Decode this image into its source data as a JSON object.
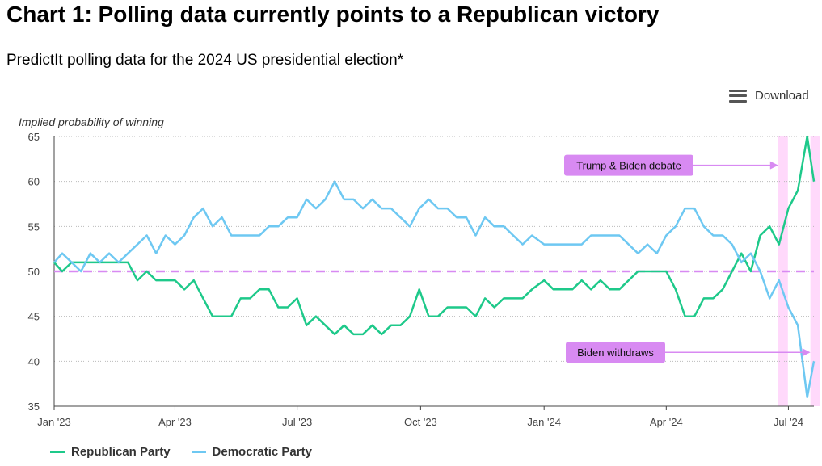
{
  "header": {
    "title": "Chart 1: Polling data currently points to a Republican victory",
    "subtitle": "PredictIt polling data for the 2024 US presidential election*",
    "download_label": "Download",
    "menu_icon": "hamburger-menu-icon"
  },
  "chart_data": {
    "type": "line",
    "ylabel": "Implied probability of winning",
    "xlabel": "",
    "ylim": [
      35,
      65
    ],
    "yticks": [
      35,
      40,
      45,
      50,
      55,
      60,
      65
    ],
    "xlim": [
      "2023-01-01",
      "2024-07-20"
    ],
    "xticks": [
      {
        "label": "Jan '23",
        "date": "2023-01-01"
      },
      {
        "label": "Apr '23",
        "date": "2023-04-01"
      },
      {
        "label": "Jul '23",
        "date": "2023-07-01"
      },
      {
        "label": "Oct '23",
        "date": "2023-10-01"
      },
      {
        "label": "Jan '24",
        "date": "2024-01-01"
      },
      {
        "label": "Apr '24",
        "date": "2024-04-01"
      },
      {
        "label": "Jul '24",
        "date": "2024-07-01"
      }
    ],
    "grid": true,
    "legend_position": "bottom-left",
    "reference_line": {
      "value": 50,
      "color": "#d88af2"
    },
    "series": [
      {
        "name": "Republican Party",
        "color": "#1ec98a",
        "values": [
          [
            "2023-01-01",
            51
          ],
          [
            "2023-01-07",
            50
          ],
          [
            "2023-01-14",
            51
          ],
          [
            "2023-01-21",
            51
          ],
          [
            "2023-01-28",
            51
          ],
          [
            "2023-02-04",
            51
          ],
          [
            "2023-02-11",
            51
          ],
          [
            "2023-02-18",
            51
          ],
          [
            "2023-02-25",
            51
          ],
          [
            "2023-03-04",
            49
          ],
          [
            "2023-03-11",
            50
          ],
          [
            "2023-03-18",
            49
          ],
          [
            "2023-03-25",
            49
          ],
          [
            "2023-04-01",
            49
          ],
          [
            "2023-04-08",
            48
          ],
          [
            "2023-04-15",
            49
          ],
          [
            "2023-04-22",
            47
          ],
          [
            "2023-04-29",
            45
          ],
          [
            "2023-05-06",
            45
          ],
          [
            "2023-05-13",
            45
          ],
          [
            "2023-05-20",
            47
          ],
          [
            "2023-05-27",
            47
          ],
          [
            "2023-06-03",
            48
          ],
          [
            "2023-06-10",
            48
          ],
          [
            "2023-06-17",
            46
          ],
          [
            "2023-06-24",
            46
          ],
          [
            "2023-07-01",
            47
          ],
          [
            "2023-07-08",
            44
          ],
          [
            "2023-07-15",
            45
          ],
          [
            "2023-07-22",
            44
          ],
          [
            "2023-07-29",
            43
          ],
          [
            "2023-08-05",
            44
          ],
          [
            "2023-08-12",
            43
          ],
          [
            "2023-08-19",
            43
          ],
          [
            "2023-08-26",
            44
          ],
          [
            "2023-09-02",
            43
          ],
          [
            "2023-09-09",
            44
          ],
          [
            "2023-09-16",
            44
          ],
          [
            "2023-09-23",
            45
          ],
          [
            "2023-09-30",
            48
          ],
          [
            "2023-10-07",
            45
          ],
          [
            "2023-10-14",
            45
          ],
          [
            "2023-10-21",
            46
          ],
          [
            "2023-10-28",
            46
          ],
          [
            "2023-11-04",
            46
          ],
          [
            "2023-11-11",
            45
          ],
          [
            "2023-11-18",
            47
          ],
          [
            "2023-11-25",
            46
          ],
          [
            "2023-12-02",
            47
          ],
          [
            "2023-12-09",
            47
          ],
          [
            "2023-12-16",
            47
          ],
          [
            "2023-12-23",
            48
          ],
          [
            "2024-01-01",
            49
          ],
          [
            "2024-01-08",
            48
          ],
          [
            "2024-01-15",
            48
          ],
          [
            "2024-01-22",
            48
          ],
          [
            "2024-01-29",
            49
          ],
          [
            "2024-02-05",
            48
          ],
          [
            "2024-02-12",
            49
          ],
          [
            "2024-02-19",
            48
          ],
          [
            "2024-02-26",
            48
          ],
          [
            "2024-03-04",
            49
          ],
          [
            "2024-03-11",
            50
          ],
          [
            "2024-03-18",
            50
          ],
          [
            "2024-03-25",
            50
          ],
          [
            "2024-04-01",
            50
          ],
          [
            "2024-04-08",
            48
          ],
          [
            "2024-04-15",
            45
          ],
          [
            "2024-04-22",
            45
          ],
          [
            "2024-04-29",
            47
          ],
          [
            "2024-05-06",
            47
          ],
          [
            "2024-05-13",
            48
          ],
          [
            "2024-05-20",
            50
          ],
          [
            "2024-05-27",
            52
          ],
          [
            "2024-06-03",
            50
          ],
          [
            "2024-06-10",
            54
          ],
          [
            "2024-06-17",
            55
          ],
          [
            "2024-06-24",
            53
          ],
          [
            "2024-07-01",
            57
          ],
          [
            "2024-07-08",
            59
          ],
          [
            "2024-07-15",
            65
          ],
          [
            "2024-07-20",
            60
          ]
        ]
      },
      {
        "name": "Democratic Party",
        "color": "#6ec8f2",
        "values": [
          [
            "2023-01-01",
            51
          ],
          [
            "2023-01-07",
            52
          ],
          [
            "2023-01-14",
            51
          ],
          [
            "2023-01-21",
            50
          ],
          [
            "2023-01-28",
            52
          ],
          [
            "2023-02-04",
            51
          ],
          [
            "2023-02-11",
            52
          ],
          [
            "2023-02-18",
            51
          ],
          [
            "2023-02-25",
            52
          ],
          [
            "2023-03-04",
            53
          ],
          [
            "2023-03-11",
            54
          ],
          [
            "2023-03-18",
            52
          ],
          [
            "2023-03-25",
            54
          ],
          [
            "2023-04-01",
            53
          ],
          [
            "2023-04-08",
            54
          ],
          [
            "2023-04-15",
            56
          ],
          [
            "2023-04-22",
            57
          ],
          [
            "2023-04-29",
            55
          ],
          [
            "2023-05-06",
            56
          ],
          [
            "2023-05-13",
            54
          ],
          [
            "2023-05-20",
            54
          ],
          [
            "2023-05-27",
            54
          ],
          [
            "2023-06-03",
            54
          ],
          [
            "2023-06-10",
            55
          ],
          [
            "2023-06-17",
            55
          ],
          [
            "2023-06-24",
            56
          ],
          [
            "2023-07-01",
            56
          ],
          [
            "2023-07-08",
            58
          ],
          [
            "2023-07-15",
            57
          ],
          [
            "2023-07-22",
            58
          ],
          [
            "2023-07-29",
            60
          ],
          [
            "2023-08-05",
            58
          ],
          [
            "2023-08-12",
            58
          ],
          [
            "2023-08-19",
            57
          ],
          [
            "2023-08-26",
            58
          ],
          [
            "2023-09-02",
            57
          ],
          [
            "2023-09-09",
            57
          ],
          [
            "2023-09-16",
            56
          ],
          [
            "2023-09-23",
            55
          ],
          [
            "2023-09-30",
            57
          ],
          [
            "2023-10-07",
            58
          ],
          [
            "2023-10-14",
            57
          ],
          [
            "2023-10-21",
            57
          ],
          [
            "2023-10-28",
            56
          ],
          [
            "2023-11-04",
            56
          ],
          [
            "2023-11-11",
            54
          ],
          [
            "2023-11-18",
            56
          ],
          [
            "2023-11-25",
            55
          ],
          [
            "2023-12-02",
            55
          ],
          [
            "2023-12-09",
            54
          ],
          [
            "2023-12-16",
            53
          ],
          [
            "2023-12-23",
            54
          ],
          [
            "2024-01-01",
            53
          ],
          [
            "2024-01-08",
            53
          ],
          [
            "2024-01-15",
            53
          ],
          [
            "2024-01-22",
            53
          ],
          [
            "2024-01-29",
            53
          ],
          [
            "2024-02-05",
            54
          ],
          [
            "2024-02-12",
            54
          ],
          [
            "2024-02-19",
            54
          ],
          [
            "2024-02-26",
            54
          ],
          [
            "2024-03-04",
            53
          ],
          [
            "2024-03-11",
            52
          ],
          [
            "2024-03-18",
            53
          ],
          [
            "2024-03-25",
            52
          ],
          [
            "2024-04-01",
            54
          ],
          [
            "2024-04-08",
            55
          ],
          [
            "2024-04-15",
            57
          ],
          [
            "2024-04-22",
            57
          ],
          [
            "2024-04-29",
            55
          ],
          [
            "2024-05-06",
            54
          ],
          [
            "2024-05-13",
            54
          ],
          [
            "2024-05-20",
            53
          ],
          [
            "2024-05-27",
            51
          ],
          [
            "2024-06-03",
            52
          ],
          [
            "2024-06-10",
            50
          ],
          [
            "2024-06-17",
            47
          ],
          [
            "2024-06-24",
            49
          ],
          [
            "2024-07-01",
            46
          ],
          [
            "2024-07-08",
            44
          ],
          [
            "2024-07-15",
            36
          ],
          [
            "2024-07-20",
            40
          ]
        ]
      }
    ],
    "bands": [
      {
        "date": "2024-06-27",
        "color": "#ffd9fb"
      },
      {
        "date": "2024-07-21",
        "color": "#ffd9fb"
      }
    ],
    "annotations": [
      {
        "text": "Trump & Biden debate",
        "y": 61.8,
        "target_date": "2024-06-27",
        "fill": "#d88af2"
      },
      {
        "text": "Biden withdraws",
        "y": 41,
        "target_date": "2024-07-21",
        "fill": "#d88af2"
      }
    ]
  }
}
